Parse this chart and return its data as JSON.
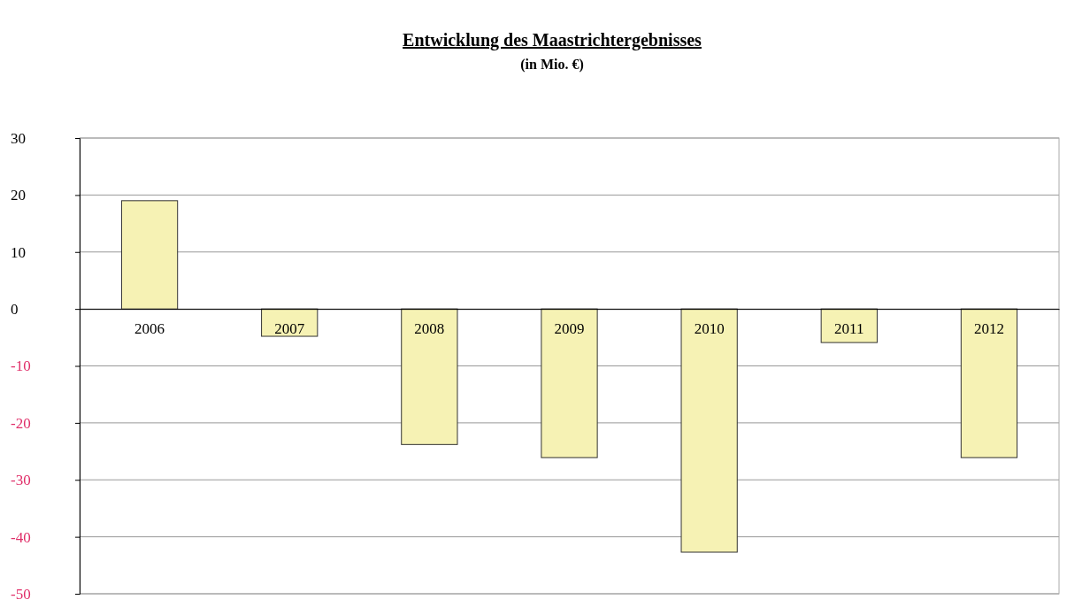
{
  "chart_data": {
    "type": "bar",
    "title": "Entwicklung des Maastrichtergebnisses",
    "subtitle": "(in Mio. €)",
    "categories": [
      "2006",
      "2007",
      "2008",
      "2009",
      "2010",
      "2011",
      "2012"
    ],
    "values": [
      19,
      -4.8,
      -23.8,
      -26.1,
      -42.7,
      -5.9,
      -26.1
    ],
    "color": "#f6f2b4",
    "ylim": [
      -50,
      30
    ],
    "yticks": [
      -50,
      -40,
      -30,
      -20,
      -10,
      0,
      10,
      20,
      30
    ],
    "grid": "y"
  }
}
